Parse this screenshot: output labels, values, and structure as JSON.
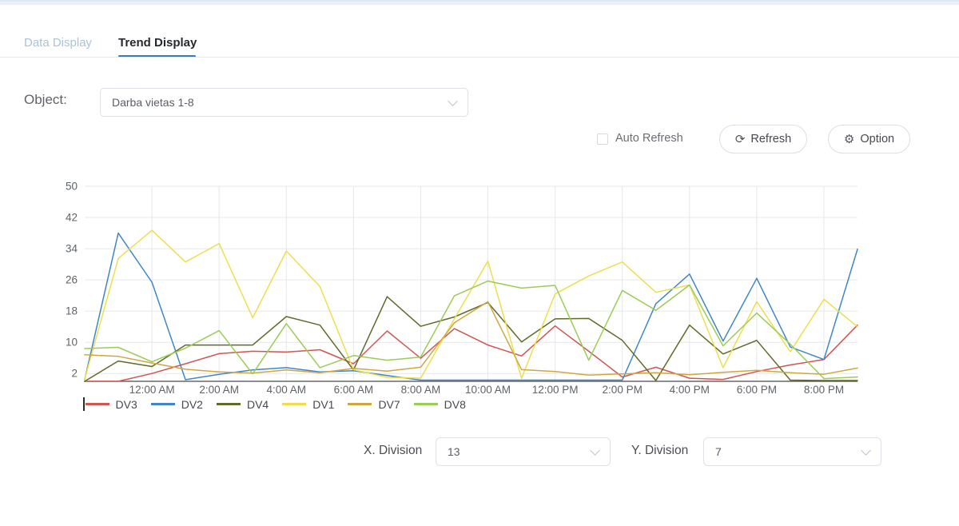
{
  "tabs": {
    "data_display": "Data Display",
    "trend_display": "Trend Display"
  },
  "object_row": {
    "label": "Object:",
    "value": "Darba vietas 1-8"
  },
  "toolbar": {
    "auto_refresh_label": "Auto Refresh",
    "refresh_label": "Refresh",
    "option_label": "Option",
    "refresh_icon": "⟳",
    "option_icon": "⚙"
  },
  "divisions": {
    "x_label": "X. Division",
    "x_value": "13",
    "y_label": "Y. Division",
    "y_value": "7"
  },
  "colors": {
    "accent_blue": "#3a7cc2",
    "grid_line": "#e5e7eb",
    "axis_line": "#4a4a4a"
  },
  "chart_data": {
    "type": "line",
    "title": "",
    "xlabel": "",
    "ylabel": "",
    "grid": true,
    "legend_position": "bottom-left",
    "ylim": [
      0,
      50
    ],
    "y_ticks": [
      2,
      10,
      18,
      26,
      34,
      42,
      50
    ],
    "x_points": 24,
    "x_tick_indices": [
      2,
      4,
      6,
      8,
      10,
      12,
      14,
      16,
      18,
      20,
      22
    ],
    "x_tick_labels": [
      "12:00 AM",
      "2:00 AM",
      "4:00 AM",
      "6:00 AM",
      "8:00 AM",
      "10:00 AM",
      "12:00 PM",
      "2:00 PM",
      "4:00 PM",
      "6:00 PM",
      "8:00 PM"
    ],
    "series": [
      {
        "name": "DV3",
        "color": "#d15550",
        "values": [
          0,
          0,
          2,
          4.5,
          7.1,
          7.7,
          7.5,
          8.1,
          4.5,
          12.9,
          5.9,
          13.5,
          9.3,
          6.5,
          14.2,
          7.7,
          1.1,
          3.6,
          0.8,
          0.5,
          2.5,
          4.2,
          5.6,
          14.4
        ]
      },
      {
        "name": "DV2",
        "color": "#3f86c9",
        "values": [
          0.5,
          38,
          25.4,
          0.4,
          1.8,
          2.9,
          3.5,
          2.4,
          2.7,
          1.5,
          0.3,
          0.3,
          0.3,
          0.3,
          0.3,
          0.3,
          0.3,
          19.9,
          27.5,
          10.3,
          26.4,
          8.8,
          5.6,
          33.9
        ]
      },
      {
        "name": "DV4",
        "color": "#606a29",
        "values": [
          0,
          5.2,
          3.8,
          9.3,
          9.3,
          9.3,
          16.6,
          14.4,
          2.9,
          21.7,
          14.1,
          16.5,
          20.2,
          10.1,
          16,
          16.1,
          10.5,
          0.2,
          14.4,
          7,
          10.5,
          0.3,
          0.2,
          0.2
        ]
      },
      {
        "name": "DV1",
        "color": "#ecdf4e",
        "values": [
          0.6,
          31.5,
          38.7,
          30.6,
          35.3,
          16.3,
          33.4,
          24.3,
          3,
          1,
          0.8,
          16,
          30.8,
          0.8,
          22.4,
          27,
          30.6,
          22.8,
          24.7,
          3.5,
          20.4,
          7.6,
          21,
          14
        ]
      },
      {
        "name": "DV7",
        "color": "#d0a73f",
        "values": [
          6.8,
          6.4,
          4.7,
          3.1,
          2.4,
          2.1,
          2.9,
          2.2,
          3.3,
          2.6,
          3.6,
          15,
          20.4,
          3,
          2.5,
          1.6,
          1.9,
          2.2,
          1.7,
          2.3,
          2.8,
          2.2,
          1.8,
          3.4
        ]
      },
      {
        "name": "DV8",
        "color": "#9bcc55",
        "values": [
          8.4,
          8.7,
          5,
          8.5,
          13,
          1.9,
          14.8,
          3.5,
          6.6,
          5.4,
          6.2,
          21.9,
          25.7,
          23.9,
          24.6,
          5.4,
          23.3,
          18.2,
          24.7,
          9.1,
          17.5,
          9.5,
          0.7,
          1.1
        ]
      }
    ]
  }
}
